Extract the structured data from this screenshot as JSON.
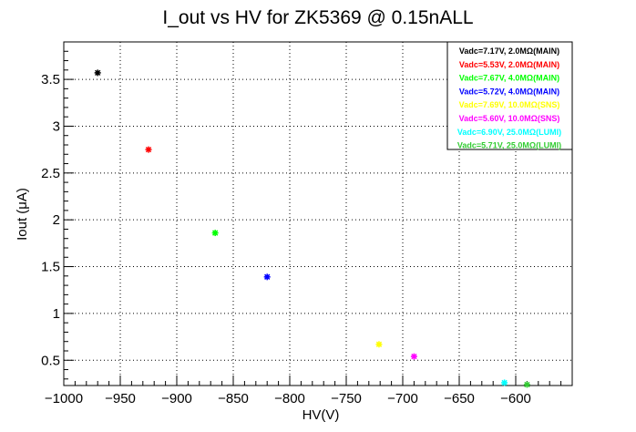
{
  "chart_data": {
    "type": "scatter",
    "title": "I_out vs HV for ZK5369 @ 0.15nALL",
    "xlabel": "HV(V)",
    "ylabel": "Iout (μA)",
    "xlim": [
      -1000,
      -550
    ],
    "ylim": [
      0.23,
      3.9
    ],
    "x_ticks": [
      -1000,
      -950,
      -900,
      -850,
      -800,
      -750,
      -700,
      -650,
      -600
    ],
    "x_tick_labels": [
      "−1000",
      "−950",
      "−900",
      "−850",
      "−800",
      "−750",
      "−700",
      "−650",
      "−600"
    ],
    "y_ticks": [
      0.5,
      1,
      1.5,
      2,
      2.5,
      3,
      3.5
    ],
    "y_tick_labels": [
      "0.5",
      "1",
      "1.5",
      "2",
      "2.5",
      "3",
      "3.5"
    ],
    "grid": true,
    "legend_position": "top-right",
    "series": [
      {
        "name": "Vadc=7.17V, 2.0MΩ(MAIN)",
        "color": "#000000",
        "points": [
          {
            "x": -970,
            "y": 3.57
          }
        ]
      },
      {
        "name": "Vadc=5.53V, 2.0MΩ(MAIN)",
        "color": "#ff0000",
        "points": [
          {
            "x": -925,
            "y": 2.75
          }
        ]
      },
      {
        "name": "Vadc=7.67V, 4.0MΩ(MAIN)",
        "color": "#00ff00",
        "points": [
          {
            "x": -866,
            "y": 1.86
          }
        ]
      },
      {
        "name": "Vadc=5.72V, 4.0MΩ(MAIN)",
        "color": "#0000ff",
        "points": [
          {
            "x": -820,
            "y": 1.39
          }
        ]
      },
      {
        "name": "Vadc=7.69V, 10.0MΩ(SNS)",
        "color": "#ffff00",
        "points": [
          {
            "x": -721,
            "y": 0.67
          }
        ]
      },
      {
        "name": "Vadc=5.60V, 10.0MΩ(SNS)",
        "color": "#ff00ff",
        "points": [
          {
            "x": -690,
            "y": 0.54
          }
        ]
      },
      {
        "name": "Vadc=6.90V, 25.0MΩ(LUMI)",
        "color": "#00ffff",
        "points": [
          {
            "x": -610,
            "y": 0.26
          }
        ]
      },
      {
        "name": "Vadc=5.71V, 25.0MΩ(LUMI)",
        "color": "#33cc33",
        "points": [
          {
            "x": -590,
            "y": 0.24
          }
        ]
      }
    ]
  }
}
